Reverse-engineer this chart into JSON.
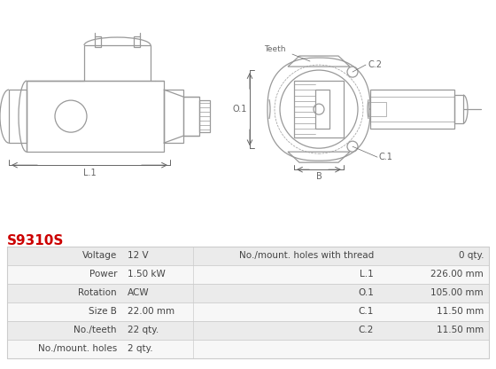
{
  "title": "S9310S",
  "title_color": "#cc0000",
  "bg_color": "#ffffff",
  "table_rows": [
    [
      "Voltage",
      "12 V",
      "No./mount. holes with thread",
      "0 qty."
    ],
    [
      "Power",
      "1.50 kW",
      "L.1",
      "226.00 mm"
    ],
    [
      "Rotation",
      "ACW",
      "O.1",
      "105.00 mm"
    ],
    [
      "Size B",
      "22.00 mm",
      "C.1",
      "11.50 mm"
    ],
    [
      "No./teeth",
      "22 qty.",
      "C.2",
      "11.50 mm"
    ],
    [
      "No./mount. holes",
      "2 qty.",
      "",
      ""
    ]
  ],
  "row_bg_odd": "#ebebeb",
  "row_bg_even": "#f7f7f7",
  "line_color": "#cccccc",
  "text_color": "#444444",
  "lc": "#999999",
  "dim_color": "#666666"
}
